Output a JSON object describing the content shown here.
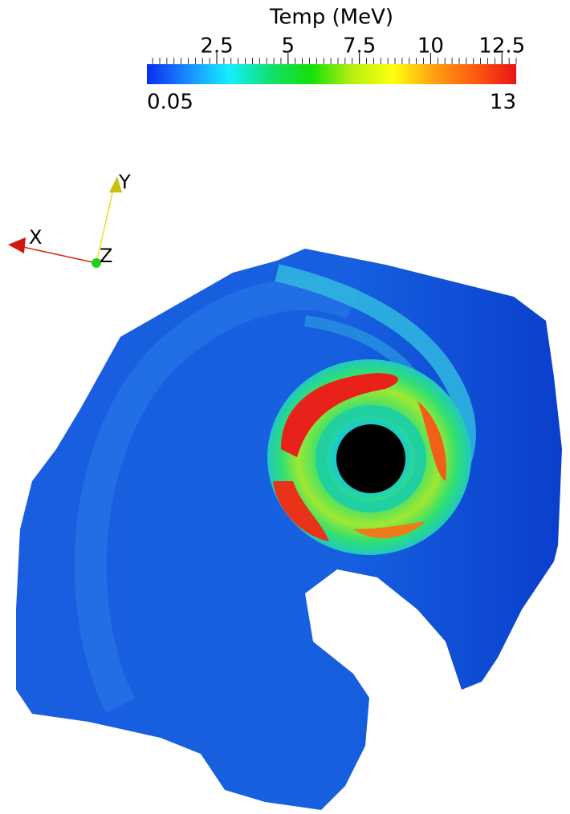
{
  "colorbar": {
    "title": "Temp (MeV)",
    "range": [
      0.05,
      13
    ],
    "ticks": [
      2.5,
      5,
      7.5,
      10,
      12.5
    ],
    "colormap": [
      "#0a2cf0",
      "#1a8cff",
      "#12f0ff",
      "#10e070",
      "#14e00a",
      "#b8f010",
      "#ffff10",
      "#ffa010",
      "#ff5a10",
      "#e81414"
    ]
  },
  "axes": {
    "x": "X",
    "y": "Y",
    "z": "Z"
  }
}
